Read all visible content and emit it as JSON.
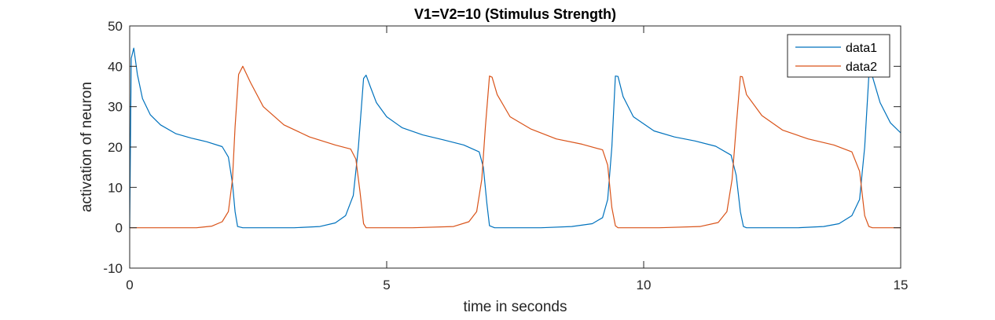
{
  "chart_data": {
    "type": "line",
    "title": "V1=V2=10 (Stimulus Strength)",
    "xlabel": "time in seconds",
    "ylabel": "activation of neuron",
    "xlim": [
      0,
      15
    ],
    "ylim": [
      -10,
      50
    ],
    "xticks": [
      0,
      5,
      10,
      15
    ],
    "yticks": [
      -10,
      0,
      10,
      20,
      30,
      40,
      50
    ],
    "grid": false,
    "box": true,
    "legend_position": "top-right",
    "series": [
      {
        "name": "data1",
        "color": "#0072BD",
        "x": [
          0,
          0.03,
          0.08,
          0.15,
          0.25,
          0.4,
          0.6,
          0.9,
          1.2,
          1.5,
          1.8,
          1.92,
          2.0,
          2.05,
          2.1,
          2.2,
          2.6,
          3.2,
          3.7,
          4.0,
          4.2,
          4.35,
          4.45,
          4.55,
          4.6,
          4.68,
          4.8,
          5.0,
          5.3,
          5.7,
          6.1,
          6.5,
          6.8,
          6.88,
          6.95,
          7.0,
          7.1,
          7.5,
          8.0,
          8.6,
          9.0,
          9.2,
          9.3,
          9.38,
          9.45,
          9.5,
          9.6,
          9.8,
          10.2,
          10.6,
          11.0,
          11.4,
          11.7,
          11.8,
          11.88,
          11.94,
          12.0,
          12.4,
          13.0,
          13.5,
          13.8,
          14.05,
          14.2,
          14.3,
          14.38,
          14.45,
          14.6,
          14.8,
          15.0
        ],
        "y": [
          0,
          42,
          44.5,
          38,
          32,
          28,
          25.5,
          23.3,
          22.2,
          21.3,
          20.1,
          17.5,
          11,
          4,
          0.3,
          0,
          0,
          0,
          0.3,
          1.2,
          3,
          8,
          20,
          37,
          37.8,
          35,
          31,
          27.5,
          24.8,
          23,
          21.8,
          20.5,
          18.8,
          15,
          6,
          0.5,
          0,
          0,
          0,
          0.3,
          1,
          2.5,
          7,
          20,
          37.6,
          37.5,
          32.5,
          27.5,
          24,
          22.5,
          21.5,
          20.2,
          18,
          13,
          4,
          0.3,
          0,
          0,
          0,
          0.3,
          1,
          3,
          7,
          20,
          37.7,
          37.5,
          31,
          26,
          23.5
        ]
      },
      {
        "name": "data2",
        "color": "#D95319",
        "x": [
          0,
          1.3,
          1.6,
          1.8,
          1.92,
          2.0,
          2.05,
          2.12,
          2.2,
          2.35,
          2.6,
          3.0,
          3.5,
          4.0,
          4.3,
          4.4,
          4.48,
          4.55,
          4.6,
          4.7,
          5.5,
          6.3,
          6.6,
          6.75,
          6.85,
          6.92,
          7.0,
          7.05,
          7.15,
          7.4,
          7.8,
          8.3,
          8.8,
          9.2,
          9.3,
          9.38,
          9.45,
          9.5,
          9.6,
          10.3,
          11.1,
          11.45,
          11.62,
          11.72,
          11.8,
          11.88,
          11.92,
          12.0,
          12.3,
          12.7,
          13.2,
          13.7,
          14.05,
          14.2,
          14.3,
          14.38,
          14.45,
          14.6,
          15.0
        ],
        "y": [
          0,
          0,
          0.4,
          1.5,
          4,
          12,
          25,
          38,
          40,
          36,
          30,
          25.5,
          22.5,
          20.5,
          19.5,
          17,
          9,
          1,
          0,
          0,
          0,
          0.3,
          1.5,
          4,
          12,
          25,
          37.6,
          37.3,
          33,
          27.5,
          24.5,
          22,
          20.7,
          19.3,
          15.5,
          5,
          0.5,
          0,
          0,
          0,
          0.3,
          1.3,
          4,
          12,
          25,
          37.5,
          37.4,
          33,
          27.8,
          24.2,
          22,
          20.5,
          18.8,
          14,
          3,
          0.3,
          0,
          0,
          0
        ]
      }
    ]
  }
}
